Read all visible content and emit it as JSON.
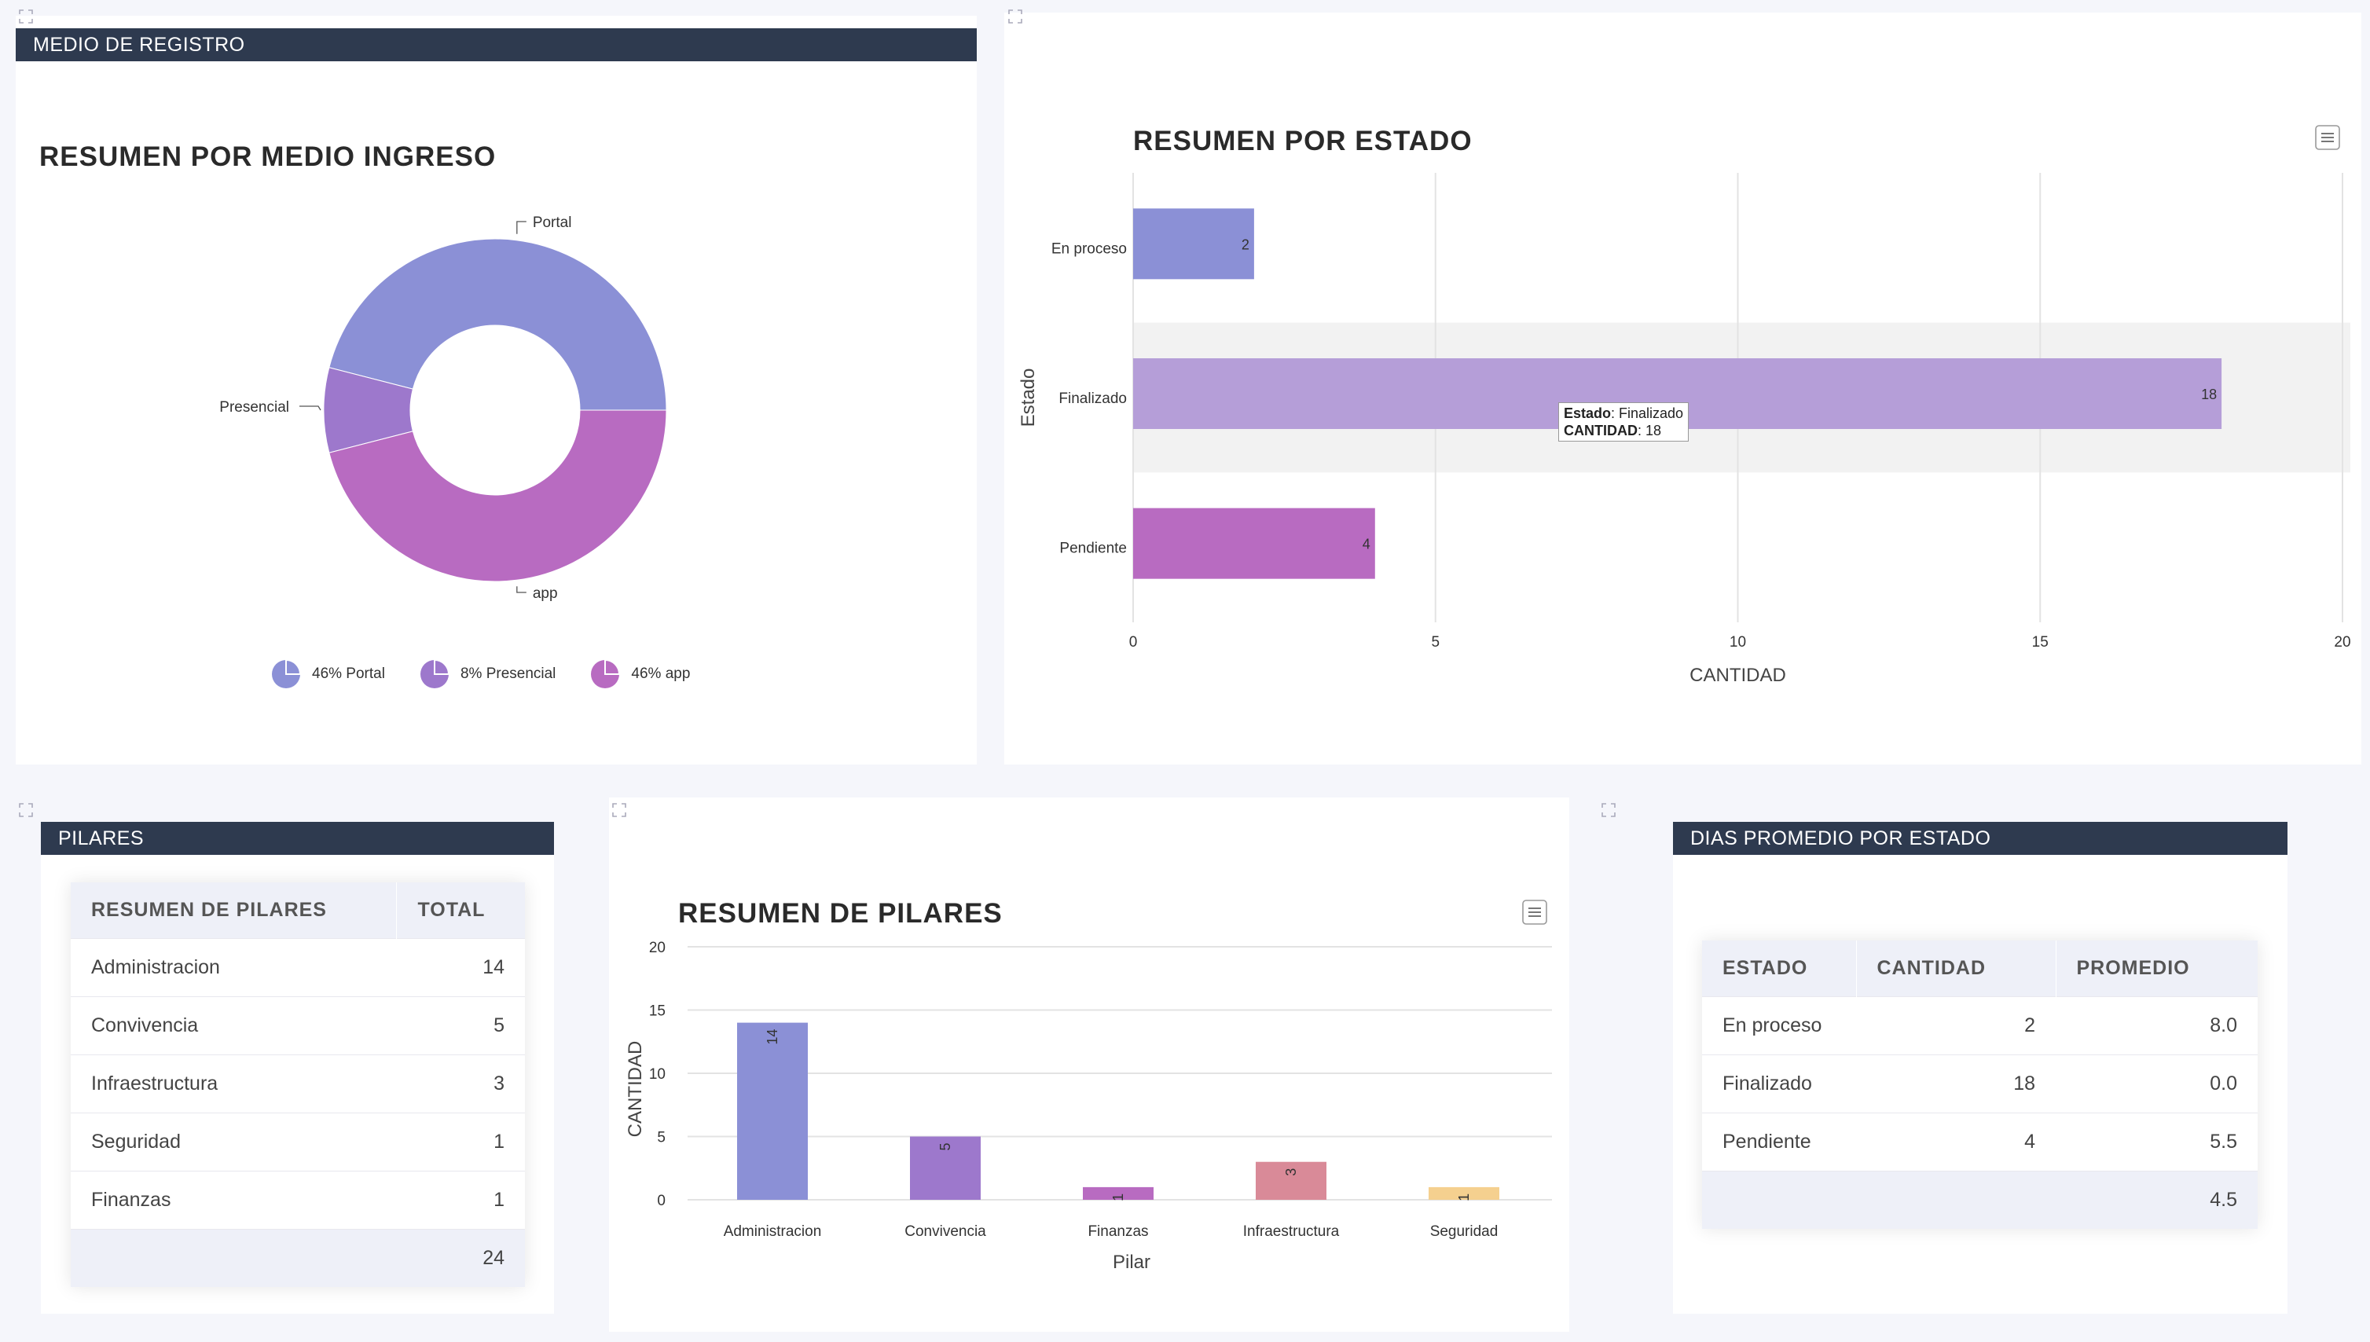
{
  "registro": {
    "header": "MEDIO DE REGISTRO",
    "title": "RESUMEN POR MEDIO INGRESO",
    "chart_data": {
      "type": "pie",
      "hole": true,
      "slices": [
        {
          "label": "Portal",
          "value": 46,
          "color": "#8b90d6"
        },
        {
          "label": "Presencial",
          "value": 8,
          "color": "#9d78cc"
        },
        {
          "label": "app",
          "value": 46,
          "color": "#b86bc1"
        }
      ],
      "legend": [
        "46% Portal",
        "8% Presencial",
        "46% app"
      ]
    }
  },
  "estado": {
    "title": "RESUMEN POR ESTADO",
    "chart_data": {
      "type": "bar",
      "orientation": "horizontal",
      "categories": [
        "En proceso",
        "Finalizado",
        "Pendiente"
      ],
      "values": [
        2,
        18,
        4
      ],
      "colors": [
        "#8b90d6",
        "#b59ed8",
        "#b86bc1"
      ],
      "xlabel": "CANTIDAD",
      "ylabel": "Estado",
      "xlim": [
        0,
        20
      ],
      "xticks": [
        "0",
        "5",
        "10",
        "15",
        "20"
      ],
      "grid": true
    },
    "tooltip": {
      "k1": "Estado",
      "v1": ": Finalizado",
      "k2": "CANTIDAD",
      "v2": ": 18"
    }
  },
  "pilares": {
    "header": "PILARES",
    "columns": [
      "RESUMEN DE PILARES",
      "TOTAL"
    ],
    "rows": [
      {
        "name": "Administracion",
        "total": "14"
      },
      {
        "name": "Convivencia",
        "total": "5"
      },
      {
        "name": "Infraestructura",
        "total": "3"
      },
      {
        "name": "Seguridad",
        "total": "1"
      },
      {
        "name": "Finanzas",
        "total": "1"
      }
    ],
    "grand_total": "24"
  },
  "resumen_pilares": {
    "title": "RESUMEN DE PILARES",
    "chart_data": {
      "type": "bar",
      "categories": [
        "Administracion",
        "Convivencia",
        "Finanzas",
        "Infraestructura",
        "Seguridad"
      ],
      "values": [
        14,
        5,
        1,
        3,
        1
      ],
      "colors": [
        "#8b90d6",
        "#9d78cc",
        "#b86bc1",
        "#d98a98",
        "#f5d08f"
      ],
      "xlabel": "Pilar",
      "ylabel": "CANTIDAD",
      "ylim": [
        0,
        20
      ],
      "yticks": [
        "0",
        "5",
        "10",
        "15",
        "20"
      ],
      "grid": true
    }
  },
  "dias": {
    "header": "DIAS PROMEDIO POR ESTADO",
    "columns": [
      "ESTADO",
      "CANTIDAD",
      "PROMEDIO"
    ],
    "rows": [
      {
        "estado": "En proceso",
        "cantidad": "2",
        "promedio": "8.0"
      },
      {
        "estado": "Finalizado",
        "cantidad": "18",
        "promedio": "0.0"
      },
      {
        "estado": "Pendiente",
        "cantidad": "4",
        "promedio": "5.5"
      }
    ],
    "total_promedio": "4.5"
  }
}
